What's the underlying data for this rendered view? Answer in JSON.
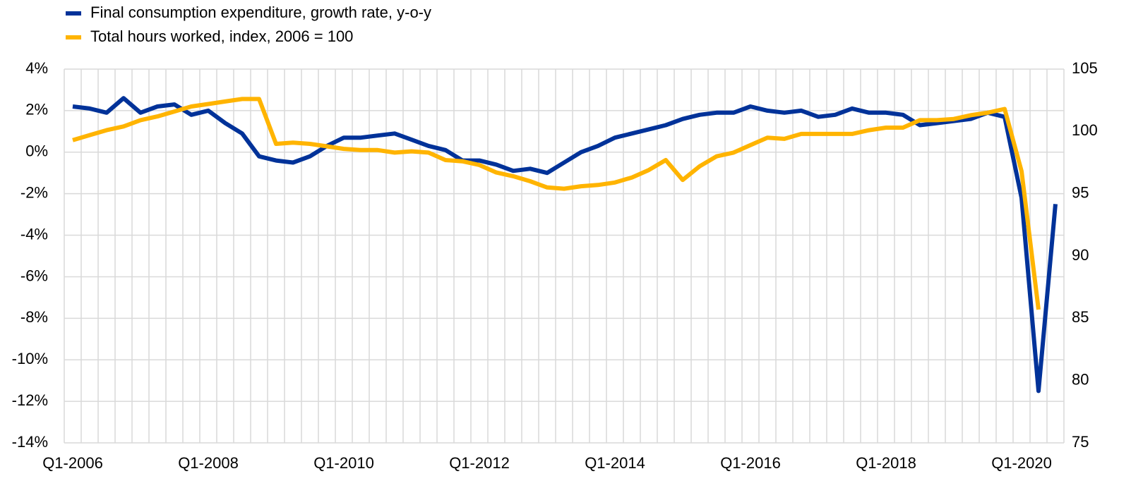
{
  "chart_data": {
    "type": "line",
    "categories": [
      "Q1-2006",
      null,
      null,
      null,
      null,
      null,
      null,
      null,
      "Q1-2008",
      null,
      null,
      null,
      null,
      null,
      null,
      null,
      "Q1-2010",
      null,
      null,
      null,
      null,
      null,
      null,
      null,
      "Q1-2012",
      null,
      null,
      null,
      null,
      null,
      null,
      null,
      "Q1-2014",
      null,
      null,
      null,
      null,
      null,
      null,
      null,
      "Q1-2016",
      null,
      null,
      null,
      null,
      null,
      null,
      null,
      "Q1-2018",
      null,
      null,
      null,
      null,
      null,
      null,
      null,
      "Q1-2020",
      null,
      null
    ],
    "series": [
      {
        "name": "Final consumption expenditure, growth rate, y-o-y",
        "color": "#003299",
        "axis": "y",
        "values": [
          2.2,
          2.1,
          1.9,
          2.6,
          1.9,
          2.2,
          2.3,
          1.8,
          2.0,
          1.4,
          0.9,
          -0.2,
          -0.4,
          -0.5,
          -0.2,
          0.3,
          0.7,
          0.7,
          0.8,
          0.9,
          0.6,
          0.3,
          0.1,
          -0.4,
          -0.4,
          -0.6,
          -0.9,
          -0.8,
          -1.0,
          -0.5,
          0.0,
          0.3,
          0.7,
          0.9,
          1.1,
          1.3,
          1.6,
          1.8,
          1.9,
          1.9,
          2.2,
          2.0,
          1.9,
          2.0,
          1.7,
          1.8,
          2.1,
          1.9,
          1.9,
          1.8,
          1.3,
          1.4,
          1.5,
          1.6,
          1.9,
          1.7,
          -2.2,
          -11.5,
          -2.5
        ]
      },
      {
        "name": "Total hours worked, index, 2006 = 100",
        "color": "#ffb400",
        "axis": "y2",
        "values": [
          99.3,
          99.7,
          100.1,
          100.4,
          100.9,
          101.2,
          101.6,
          102.0,
          102.2,
          102.4,
          102.6,
          102.6,
          99.0,
          99.1,
          99.0,
          98.8,
          98.6,
          98.5,
          98.5,
          98.3,
          98.4,
          98.3,
          97.7,
          97.6,
          97.3,
          96.7,
          96.4,
          96.0,
          95.5,
          95.4,
          95.6,
          95.7,
          95.9,
          96.3,
          96.9,
          97.7,
          96.1,
          97.2,
          98.0,
          98.3,
          98.9,
          99.5,
          99.4,
          99.8,
          99.8,
          99.8,
          99.8,
          100.1,
          100.3,
          100.3,
          100.9,
          100.9,
          101.0,
          101.3,
          101.5,
          101.8,
          96.8,
          85.7,
          null
        ]
      }
    ],
    "ylim": [
      -14,
      4
    ],
    "yticks": [
      {
        "value": -14,
        "label": "-14%"
      },
      {
        "value": -12,
        "label": "-12%"
      },
      {
        "value": -10,
        "label": "-10%"
      },
      {
        "value": -8,
        "label": "-8%"
      },
      {
        "value": -6,
        "label": "-6%"
      },
      {
        "value": -4,
        "label": "-4%"
      },
      {
        "value": -2,
        "label": "-2%"
      },
      {
        "value": 0,
        "label": "0%"
      },
      {
        "value": 2,
        "label": "2%"
      },
      {
        "value": 4,
        "label": "4%"
      }
    ],
    "y2lim": [
      75,
      105
    ],
    "y2ticks": [
      75,
      80,
      85,
      90,
      95,
      100,
      105
    ],
    "grid": true,
    "legend": "top-left"
  }
}
